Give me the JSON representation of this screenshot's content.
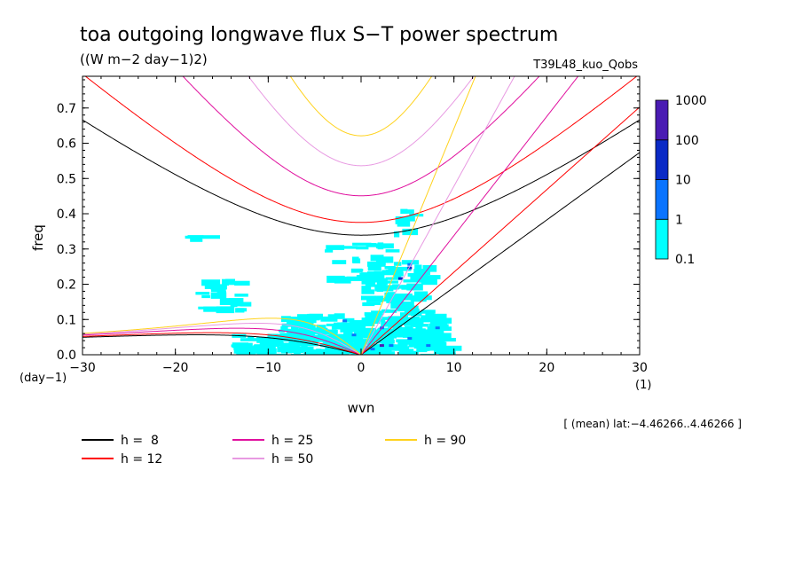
{
  "chart_data": {
    "type": "line",
    "title": "toa outgoing longwave flux S−T power spectrum",
    "subtitle": "((W m−2 day−1)2)",
    "run_label": "T39L48_kuo_Qobs",
    "xlabel": "wvn",
    "ylabel": "freq",
    "x_unit": "(1)",
    "y_unit": "(day−1)",
    "xlim": [
      -30,
      30
    ],
    "ylim": [
      0,
      0.79
    ],
    "x_ticks": [
      -30,
      -20,
      -10,
      0,
      10,
      20,
      30
    ],
    "x_tick_labels": [
      "−30",
      "−20",
      "−10",
      "0",
      "10",
      "20",
      "30"
    ],
    "y_ticks": [
      0,
      0.1,
      0.2,
      0.3,
      0.4,
      0.5,
      0.6,
      0.7
    ],
    "y_tick_labels": [
      "0.0",
      "0.1",
      "0.2",
      "0.3",
      "0.4",
      "0.5",
      "0.6",
      "0.7"
    ],
    "footnote": "[ (mean) lat:−4.46266..4.46266 ]",
    "colorbar": {
      "labels": [
        "0.1",
        "1",
        "10",
        "100",
        "1000"
      ],
      "colors": [
        "#00ffff",
        "#0a74ff",
        "#0a2ac6",
        "#4a1bb3"
      ]
    },
    "legend": [
      {
        "label": "h =  8",
        "color": "#000000"
      },
      {
        "label": "h = 12",
        "color": "#ff0000"
      },
      {
        "label": "h = 25",
        "color": "#e0109e"
      },
      {
        "label": "h = 50",
        "color": "#e89ae2"
      },
      {
        "label": "h = 90",
        "color": "#ffd21c"
      }
    ],
    "series": [
      {
        "name": "h =  8",
        "color": "#000000",
        "equivalent_depth": 8
      },
      {
        "name": "h = 12",
        "color": "#ff0000",
        "equivalent_depth": 12
      },
      {
        "name": "h = 25",
        "color": "#e0109e",
        "equivalent_depth": 25
      },
      {
        "name": "h = 50",
        "color": "#e89ae2",
        "equivalent_depth": 50
      },
      {
        "name": "h = 90",
        "color": "#ffd21c",
        "equivalent_depth": 90
      }
    ],
    "power_patches": [
      {
        "x": 2,
        "y": 0.03,
        "level": 3
      },
      {
        "x": 5,
        "y": 0.25,
        "level": 2
      },
      {
        "x": 4,
        "y": 0.22,
        "level": 2
      },
      {
        "x": 5,
        "y": 0.05,
        "level": 1
      },
      {
        "x": 2,
        "y": 0.08,
        "level": 1
      },
      {
        "x": -1,
        "y": 0.06,
        "level": 1
      },
      {
        "x": 1,
        "y": 0.02,
        "level": 1
      },
      {
        "x": 7,
        "y": 0.03,
        "level": 1
      },
      {
        "x": 5,
        "y": 0.26,
        "level": 1
      },
      {
        "x": -2,
        "y": 0.1,
        "level": 1
      },
      {
        "x": 3,
        "y": 0.03,
        "level": 1
      },
      {
        "x": 8,
        "y": 0.08,
        "level": 1
      }
    ]
  }
}
